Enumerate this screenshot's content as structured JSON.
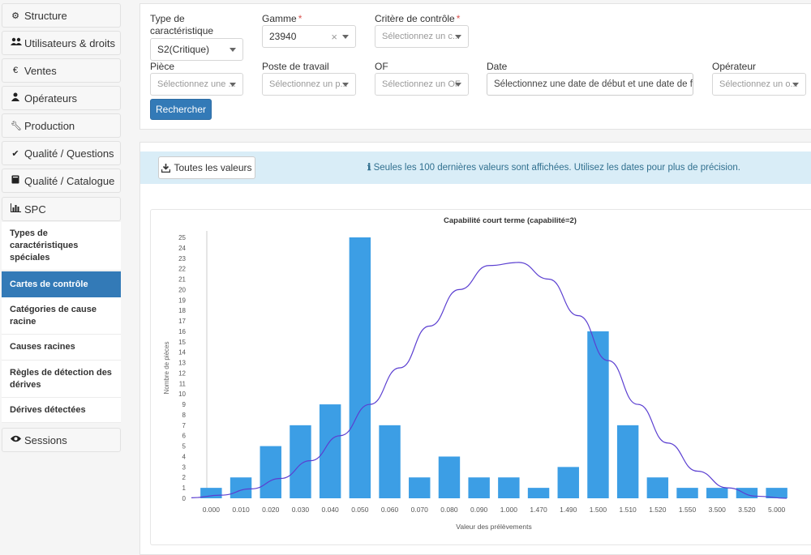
{
  "sidebar": {
    "items": [
      {
        "label": "Structure",
        "icon": "gear-icon"
      },
      {
        "label": "Utilisateurs & droits",
        "icon": "users-icon"
      },
      {
        "label": "Ventes",
        "icon": "euro-icon"
      },
      {
        "label": "Opérateurs",
        "icon": "user-icon"
      },
      {
        "label": "Production",
        "icon": "wrench-icon"
      },
      {
        "label": "Qualité / Questions",
        "icon": "check-icon"
      },
      {
        "label": "Qualité / Catalogue",
        "icon": "book-icon"
      },
      {
        "label": "SPC",
        "icon": "bar-chart-icon"
      }
    ],
    "sub_items": [
      "Types de caractéristiques spéciales",
      "Cartes de contrôle",
      "Catégories de cause racine",
      "Causes racines",
      "Règles de détection des dérives",
      "Dérives détectées"
    ],
    "active_sub": "Cartes de contrôle",
    "sessions": {
      "label": "Sessions",
      "icon": "eye-icon"
    }
  },
  "filters": {
    "type_label": "Type de caractéristique spéciale",
    "type_value": "S2(Critique)",
    "gamme_label": "Gamme",
    "gamme_value": "23940",
    "critere_label": "Critère de contrôle",
    "critere_placeholder": "Sélectionnez un c...",
    "piece_label": "Pièce",
    "piece_placeholder": "Sélectionnez une ...",
    "poste_label": "Poste de travail",
    "poste_placeholder": "Sélectionnez un p...",
    "of_label": "OF",
    "of_placeholder": "Sélectionnez un OF",
    "date_label": "Date",
    "date_value": "Sélectionnez une date de début et une date de fir",
    "operateur_label": "Opérateur",
    "operateur_placeholder": "Sélectionnez un o...",
    "search_button": "Rechercher",
    "required_mark": "*"
  },
  "results": {
    "all_values_button": "Toutes les valeurs",
    "info_text": "Seules les 100 dernières valeurs sont affichées. Utilisez les dates pour plus de précision."
  },
  "chart_data": {
    "type": "bar",
    "title": "Capabilité court terme (capabilité=2)",
    "xlabel": "Valeur des prélèvements",
    "ylabel": "Nombre de pièces",
    "categories": [
      "0.000",
      "0.010",
      "0.020",
      "0.030",
      "0.040",
      "0.050",
      "0.060",
      "0.070",
      "0.080",
      "0.090",
      "1.000",
      "1.470",
      "1.490",
      "1.500",
      "1.510",
      "1.520",
      "1.550",
      "3.500",
      "3.520",
      "5.000"
    ],
    "values": [
      1,
      2,
      5,
      7,
      9,
      25,
      7,
      2,
      4,
      2,
      2,
      1,
      3,
      16,
      7,
      2,
      1,
      1,
      1,
      1
    ],
    "ylim": [
      0,
      25
    ],
    "bar_color": "#3c9ee5",
    "curve_color": "#5b3fd1",
    "curve": [
      0.05,
      0.3,
      0.9,
      1.9,
      3.6,
      6.0,
      9.0,
      12.5,
      16.5,
      20.0,
      22.3,
      22.6,
      21.0,
      17.5,
      13.2,
      9.0,
      5.3,
      2.6,
      1.0,
      0.2,
      0.0
    ]
  }
}
